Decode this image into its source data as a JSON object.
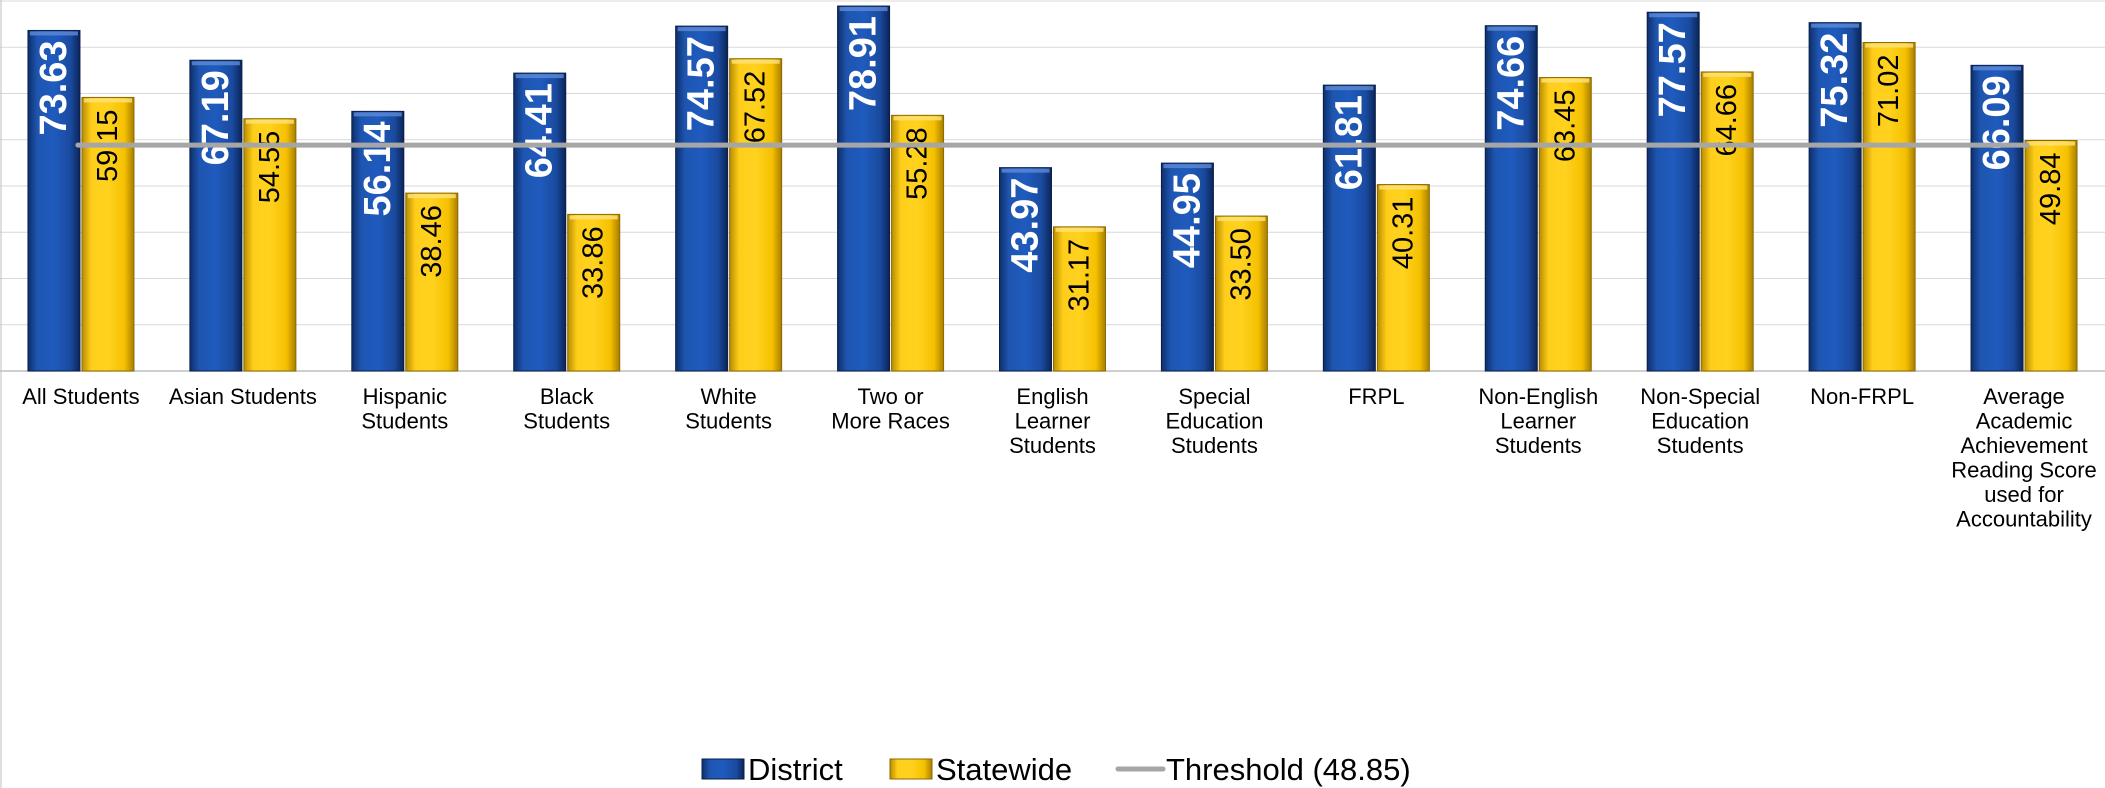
{
  "chart_data": {
    "type": "bar",
    "categories": [
      [
        "All Students"
      ],
      [
        "Asian Students"
      ],
      [
        "Hispanic",
        "Students"
      ],
      [
        "Black",
        "Students"
      ],
      [
        "White",
        "Students"
      ],
      [
        "Two or",
        "More Races"
      ],
      [
        "English",
        "Learner",
        "Students"
      ],
      [
        "Special",
        "Education",
        "Students"
      ],
      [
        "FRPL"
      ],
      [
        "Non-English",
        "Learner",
        "Students"
      ],
      [
        "Non-Special",
        "Education",
        "Students"
      ],
      [
        "Non-FRPL"
      ],
      [
        "Average",
        "Academic",
        "Achievement",
        "Reading Score",
        "used for",
        "Accountability"
      ]
    ],
    "series": [
      {
        "name": "District",
        "color": "#1F4E9E",
        "values": [
          73.63,
          67.19,
          56.14,
          64.41,
          74.57,
          78.91,
          43.97,
          44.95,
          61.81,
          74.66,
          77.57,
          75.32,
          66.09
        ],
        "labels": [
          "73.63",
          "67.19",
          "56.14",
          "64.41",
          "74.57",
          "78.91",
          "43.97",
          "44.95",
          "61.81",
          "74.66",
          "77.57",
          "75.32",
          "66.09"
        ]
      },
      {
        "name": "Statewide",
        "color": "#FFC800",
        "values": [
          59.15,
          54.55,
          38.46,
          33.86,
          67.52,
          55.28,
          31.17,
          33.5,
          40.31,
          63.45,
          64.66,
          71.02,
          49.84
        ],
        "labels": [
          "59.15",
          "54.55",
          "38.46",
          "33.86",
          "67.52",
          "55.28",
          "31.17",
          "33.50",
          "40.31",
          "63.45",
          "64.66",
          "71.02",
          "49.84"
        ]
      }
    ],
    "threshold": {
      "name": "Threshold (48.85)",
      "value": 48.85,
      "color": "#A6A6A6"
    },
    "ylim": [
      0,
      80
    ],
    "grid": true,
    "legend_position": "bottom"
  }
}
